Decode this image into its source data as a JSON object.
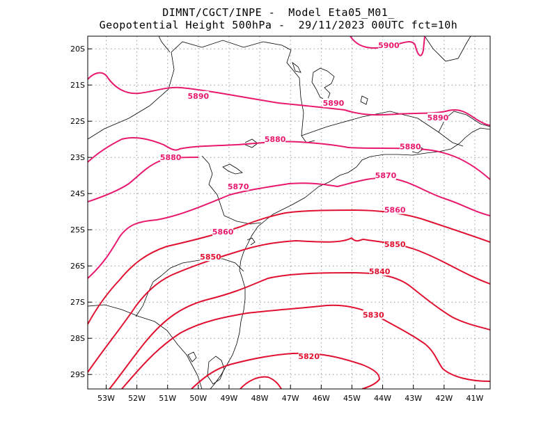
{
  "title": {
    "line1": "DIMNT/CGCT/INPE -  Model Eta05_M01_",
    "line2": "Geopotential Height 500hPa -  29/11/2023 00UTC fct=10h"
  },
  "axes": {
    "lon_ticks": [
      "53W",
      "52W",
      "51W",
      "50W",
      "49W",
      "48W",
      "47W",
      "46W",
      "45W",
      "44W",
      "43W",
      "42W",
      "41W"
    ],
    "lat_ticks": [
      "20S",
      "21S",
      "22S",
      "23S",
      "24S",
      "25S",
      "26S",
      "27S",
      "28S",
      "29S"
    ]
  },
  "colors": {
    "contour_high": "#e8186e",
    "contour_low": "#e01030",
    "coast": "#000000",
    "grid": "#9a9a9a"
  },
  "map": {
    "lon_range": [
      -53.6,
      -40.5
    ],
    "lat_range": [
      -29.4,
      -19.65
    ],
    "contour_interval": 10,
    "contour_labels": [
      {
        "text": "5900",
        "lon": -43.8,
        "lat": -19.9
      },
      {
        "text": "5890",
        "lon": -50.0,
        "lat": -21.3
      },
      {
        "text": "5890",
        "lon": -45.6,
        "lat": -21.5
      },
      {
        "text": "5890",
        "lon": -42.2,
        "lat": -21.9
      },
      {
        "text": "5880",
        "lon": -47.5,
        "lat": -22.5
      },
      {
        "text": "5880",
        "lon": -43.1,
        "lat": -22.7
      },
      {
        "text": "5880",
        "lon": -50.9,
        "lat": -23.0
      },
      {
        "text": "5870",
        "lon": -48.7,
        "lat": -23.8
      },
      {
        "text": "5870",
        "lon": -43.9,
        "lat": -23.5
      },
      {
        "text": "5860",
        "lon": -49.2,
        "lat": -25.05
      },
      {
        "text": "5860",
        "lon": -43.6,
        "lat": -24.45
      },
      {
        "text": "5850",
        "lon": -49.6,
        "lat": -25.75
      },
      {
        "text": "5850",
        "lon": -43.6,
        "lat": -25.4
      },
      {
        "text": "5840",
        "lon": -44.1,
        "lat": -26.15
      },
      {
        "text": "5830",
        "lon": -44.3,
        "lat": -27.35
      },
      {
        "text": "5820",
        "lon": -46.4,
        "lat": -28.5
      }
    ]
  }
}
